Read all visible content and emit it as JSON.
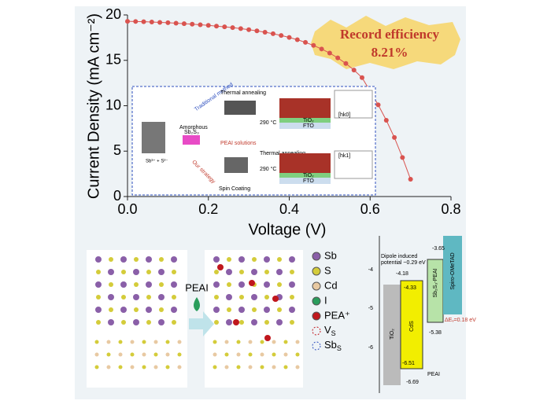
{
  "chart_data": {
    "type": "line",
    "x_label": "Voltage (V)",
    "y_label": "Current Density (mA cm⁻²)",
    "x": [
      0,
      0.02,
      0.04,
      0.06,
      0.08,
      0.1,
      0.12,
      0.14,
      0.16,
      0.18,
      0.2,
      0.22,
      0.24,
      0.26,
      0.28,
      0.3,
      0.32,
      0.34,
      0.36,
      0.38,
      0.4,
      0.42,
      0.44,
      0.46,
      0.48,
      0.5,
      0.52,
      0.54,
      0.56,
      0.58,
      0.6,
      0.62,
      0.64,
      0.66,
      0.68,
      0.7
    ],
    "series": [
      {
        "color": "#d9534f",
        "values": [
          19.3,
          19.28,
          19.25,
          19.22,
          19.18,
          19.14,
          19.09,
          19.04,
          18.98,
          18.92,
          18.85,
          18.77,
          18.69,
          18.6,
          18.5,
          18.38,
          18.25,
          18.1,
          17.93,
          17.74,
          17.52,
          17.27,
          16.98,
          16.64,
          16.25,
          15.8,
          15.27,
          14.65,
          13.93,
          13.1,
          11.6,
          10.1,
          8.4,
          6.5,
          4.3,
          1.9
        ]
      }
    ],
    "xlim": [
      0,
      0.8
    ],
    "ylim": [
      0,
      20
    ],
    "xticks": [
      {
        "value": 0,
        "label": "0.0"
      },
      {
        "value": 0.2,
        "label": "0.2"
      },
      {
        "value": 0.4,
        "label": "0.4"
      },
      {
        "value": 0.6,
        "label": "0.6"
      },
      {
        "value": 0.8,
        "label": "0.8"
      }
    ],
    "yticks": [
      0,
      5,
      10,
      15,
      20
    ],
    "annotation": [
      "Record efficiency",
      "8.21%"
    ]
  },
  "inset": {
    "thermal_top": "Thermal annealing",
    "traditional": "Traditional method",
    "amorphous": "Amorphous",
    "sb2s3": "Sb₂S₃",
    "ions": "Sb³⁺ + S²⁻",
    "peai": "PEAI solutions",
    "our": "Our strategy",
    "thermal_bottom": "Thermal annealing",
    "spin": "Spin Coating",
    "temp_top": "290 °C",
    "temp_bottom": "290 °C",
    "tio2": "TiO₂",
    "fto": "FTO",
    "hkl_top": "[hk0]",
    "hkl_bottom": "[hk1]"
  },
  "structure": {
    "reagent": "PEAI",
    "legend": [
      "Sb",
      "S",
      "Cd",
      "I",
      "PEA⁺"
    ],
    "defects": [
      {
        "main": "V",
        "sub": "S"
      },
      {
        "main": "Sb",
        "sub": "S"
      }
    ]
  },
  "band": {
    "yticks": [
      "-4",
      "-5",
      "-6"
    ],
    "dipole": "Dipole induced",
    "potential": "potential ~0.29 eV",
    "layers": [
      "TiO₂",
      "CdS",
      "Sb₂S₃-PEAI",
      "Spiro-OMeTAD",
      "PEAI"
    ],
    "levels": [
      "-3.65",
      "-4.18",
      "-4.33",
      "-5.38",
      "-6.51",
      "-6.69"
    ],
    "dEv": "ΔEᵥ=0.18 eV"
  }
}
